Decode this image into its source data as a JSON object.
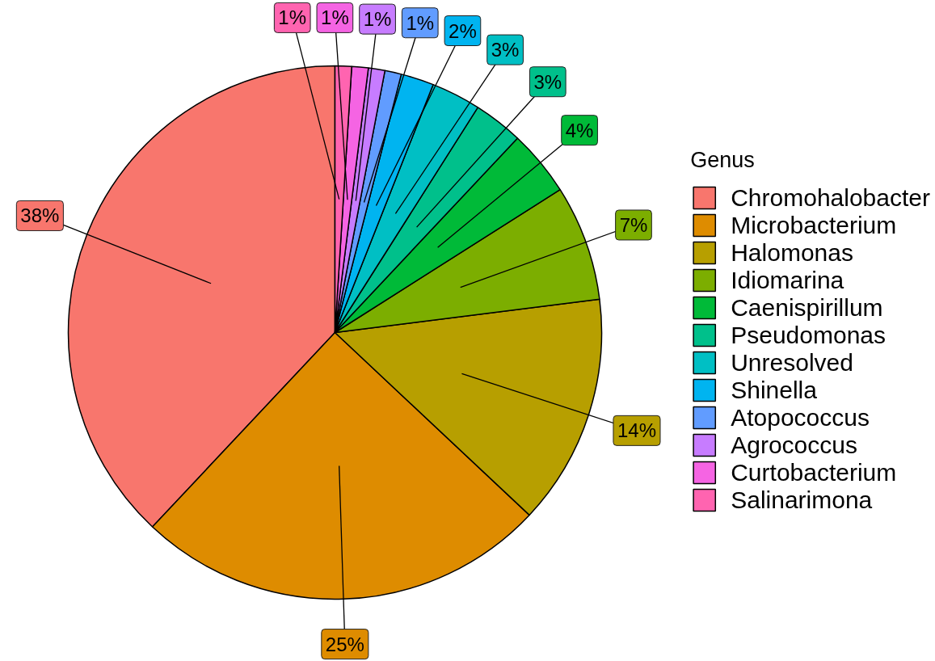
{
  "chart_data": {
    "type": "pie",
    "legend_title": "Genus",
    "categories": [
      "Chromohalobacter",
      "Microbacterium",
      "Halomonas",
      "Idiomarina",
      "Caenispirillum",
      "Pseudomonas",
      "Unresolved",
      "Shinella",
      "Atopococcus",
      "Agrococcus",
      "Curtobacterium",
      "Salinarimona"
    ],
    "values": [
      38,
      25,
      14,
      7,
      4,
      3,
      3,
      2,
      1,
      1,
      1,
      1
    ],
    "value_labels": [
      "38%",
      "25%",
      "14%",
      "7%",
      "4%",
      "3%",
      "3%",
      "2%",
      "1%",
      "1%",
      "1%",
      "1%"
    ],
    "colors": [
      "#f8766d",
      "#de8c00",
      "#b79f00",
      "#7cae00",
      "#00ba38",
      "#00c08b",
      "#00bfc4",
      "#00b4f0",
      "#619cff",
      "#c77cff",
      "#f564e3",
      "#ff64b0"
    ],
    "legend": "right"
  }
}
